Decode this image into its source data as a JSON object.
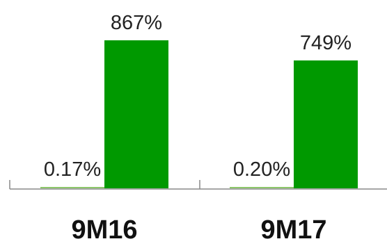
{
  "chart_data": {
    "type": "bar",
    "categories": [
      "9M16",
      "9M17"
    ],
    "series": [
      {
        "values": [
          0.17,
          0.2
        ],
        "labels": [
          "0.17%",
          "0.20%"
        ],
        "color": "#8cc66a"
      },
      {
        "values": [
          867,
          749
        ],
        "labels": [
          "867%",
          "749%"
        ],
        "color": "#009900"
      }
    ],
    "ylim": [
      0,
      900
    ],
    "grid": false,
    "legend": "none",
    "title": "",
    "xlabel": "",
    "ylabel": ""
  },
  "colors": {
    "axis": "#888888",
    "text": "#222222"
  }
}
